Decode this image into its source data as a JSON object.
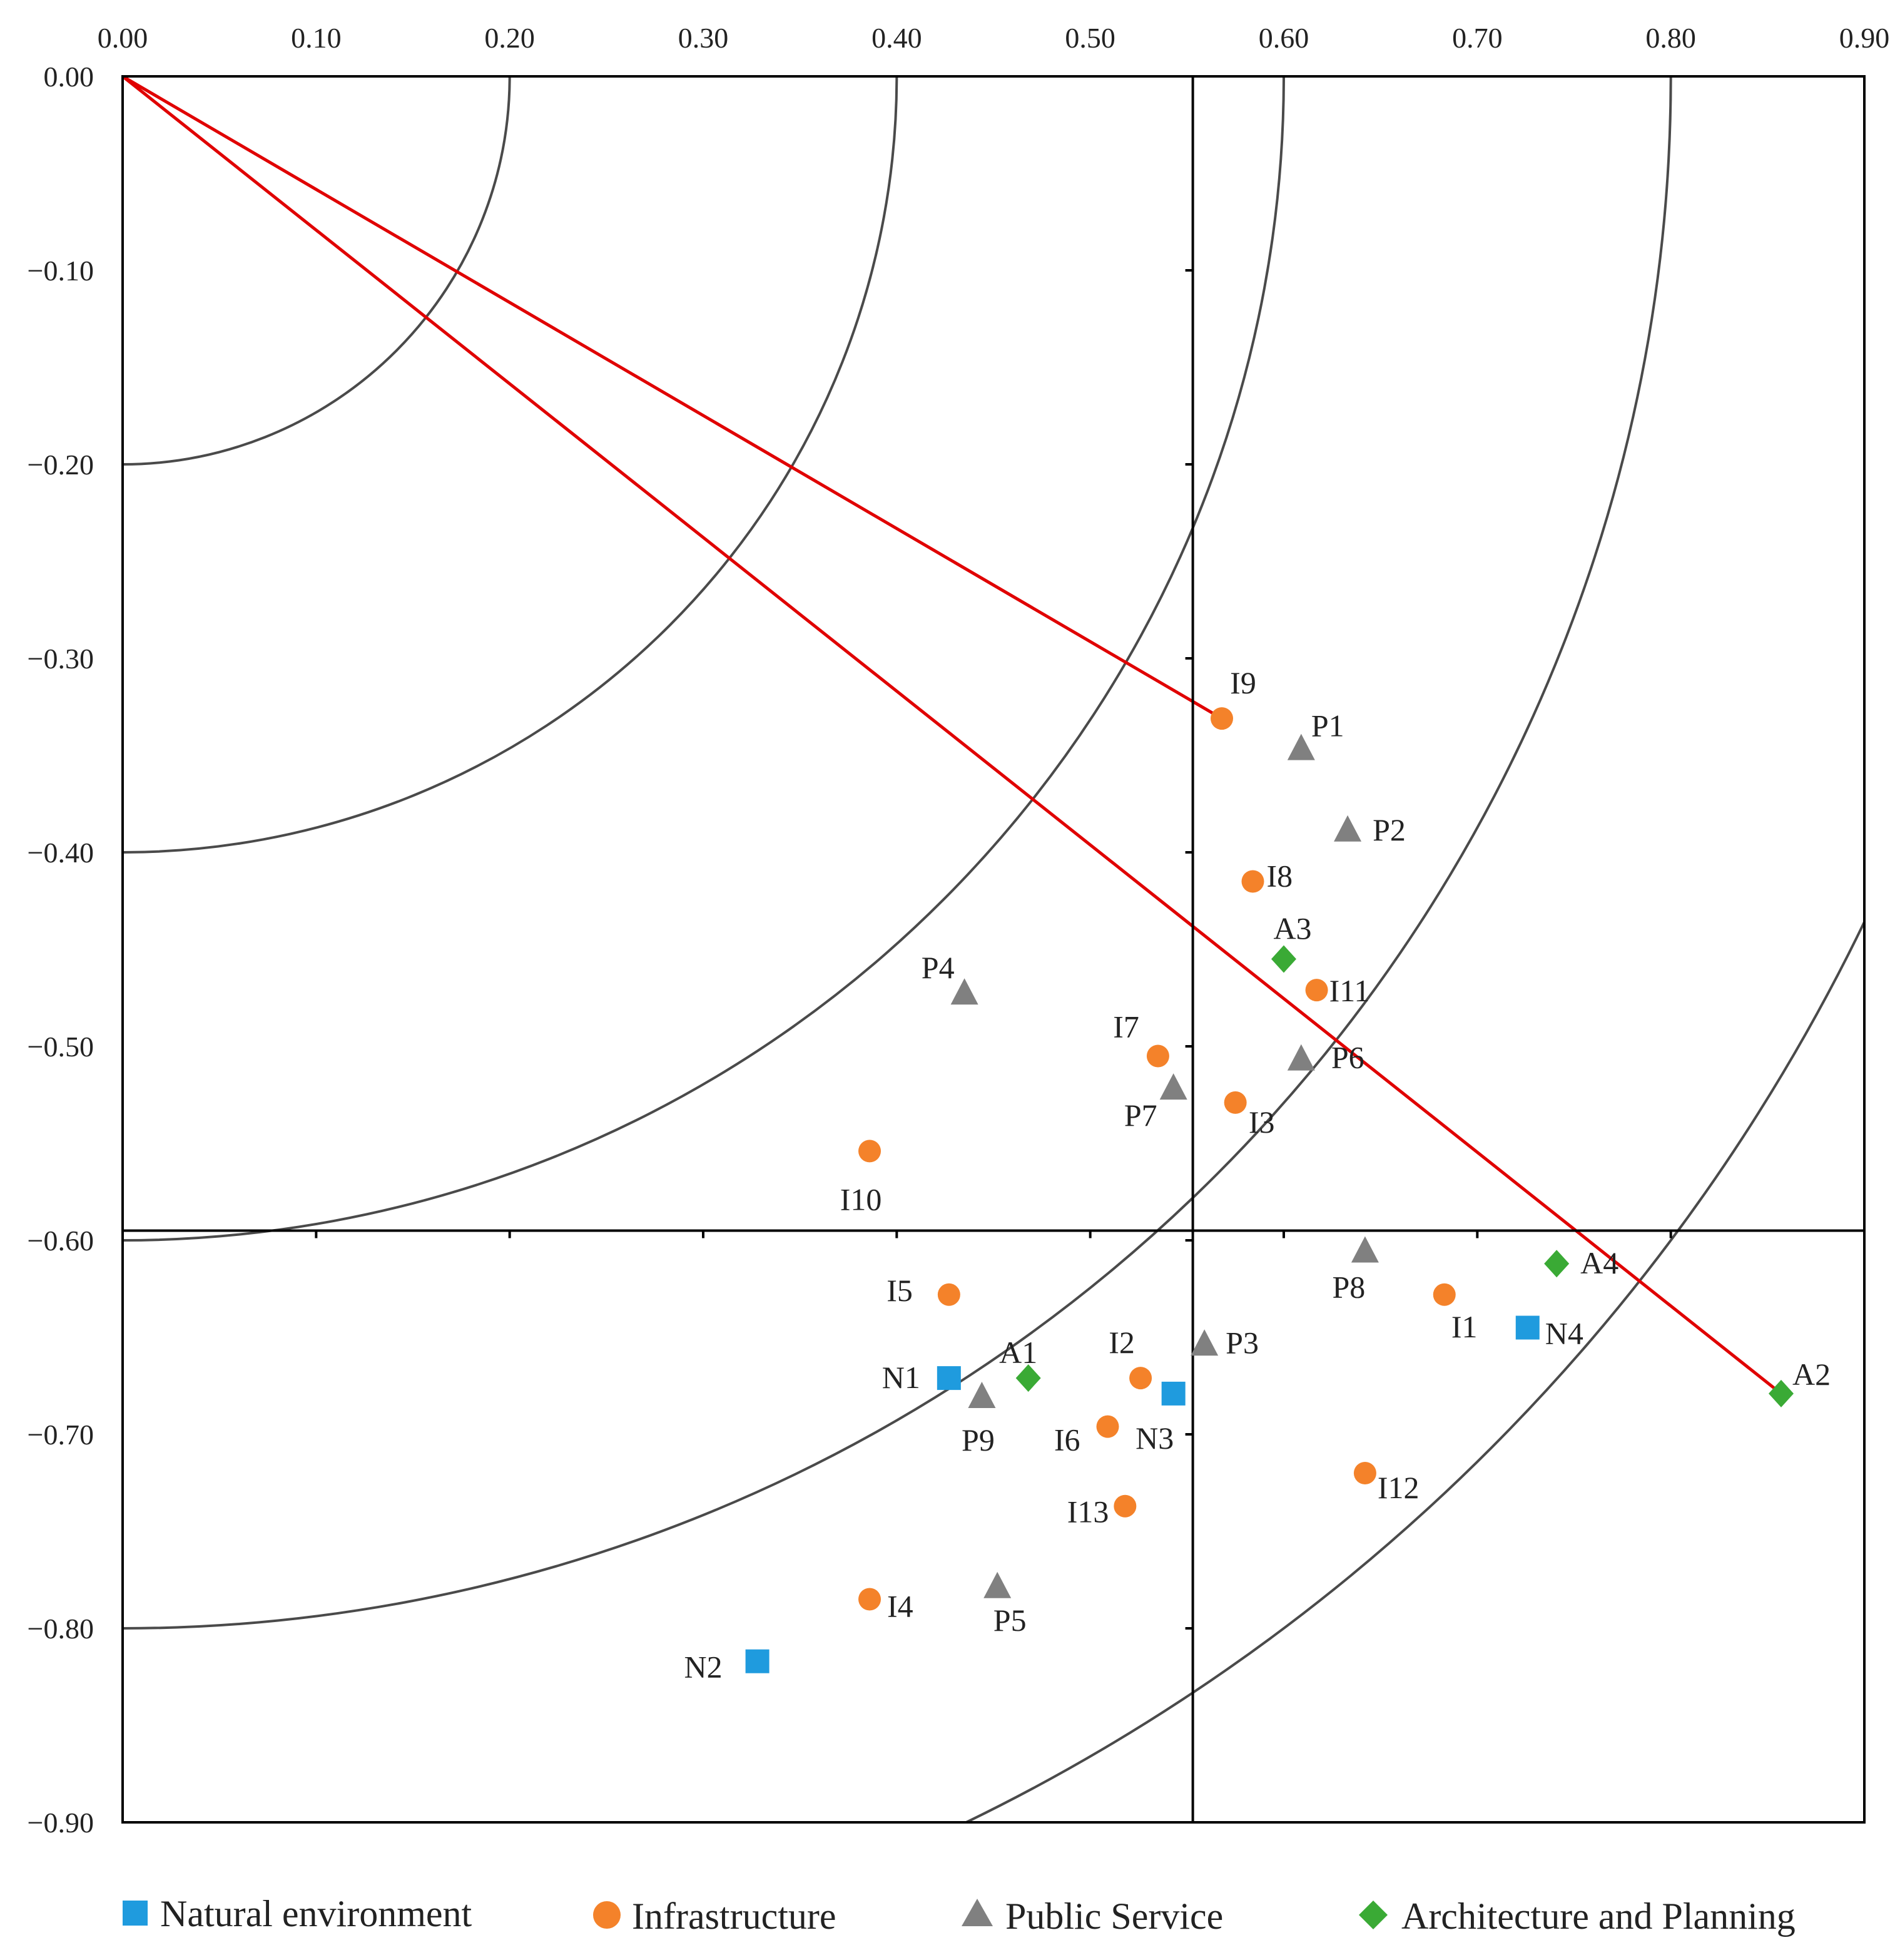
{
  "chart_data": {
    "type": "scatter",
    "title": "",
    "xlabel": "",
    "ylabel": "",
    "xlim": [
      0,
      0.9
    ],
    "ylim": [
      -0.9,
      0
    ],
    "x_ticks": [
      0,
      0.1,
      0.2,
      0.3,
      0.4,
      0.5,
      0.6,
      0.7,
      0.8,
      0.9
    ],
    "y_ticks": [
      0,
      -0.1,
      -0.2,
      -0.3,
      -0.4,
      -0.5,
      -0.6,
      -0.7,
      -0.8,
      -0.9
    ],
    "x_tick_labels": [
      "0.00",
      "0.10",
      "0.20",
      "0.30",
      "0.40",
      "0.50",
      "0.60",
      "0.70",
      "0.80",
      "0.90"
    ],
    "y_tick_labels": [
      "0.00",
      "−0.10",
      "−0.20",
      "−0.30",
      "−0.40",
      "−0.50",
      "−0.60",
      "−0.70",
      "−0.80",
      "−0.90"
    ],
    "quadrant_lines": {
      "x": 0.553,
      "y": -0.595
    },
    "arcs": [
      {
        "radius": 0.2,
        "center": [
          0,
          0
        ]
      },
      {
        "radius": 0.4,
        "center": [
          0,
          0
        ]
      },
      {
        "radius": 0.6,
        "center": [
          0,
          0
        ]
      },
      {
        "radius": 0.8,
        "center": [
          0,
          0
        ]
      },
      {
        "radius": 1.0,
        "center": [
          0,
          0
        ]
      }
    ],
    "reference_lines": [
      {
        "from": [
          0,
          0
        ],
        "to": [
          0.568,
          -0.331
        ],
        "color": "#e00000"
      },
      {
        "from": [
          0,
          0
        ],
        "to": [
          0.857,
          -0.679
        ],
        "color": "#e00000"
      }
    ],
    "series": [
      {
        "name": "Natural environment",
        "marker": "square",
        "color": "#1f9bde",
        "points": [
          {
            "label": "N1",
            "x": 0.427,
            "y": -0.671
          },
          {
            "label": "N2",
            "x": 0.328,
            "y": -0.817
          },
          {
            "label": "N3",
            "x": 0.543,
            "y": -0.679
          },
          {
            "label": "N4",
            "x": 0.726,
            "y": -0.645
          }
        ]
      },
      {
        "name": "Infrastructure",
        "marker": "circle",
        "color": "#f4822a",
        "points": [
          {
            "label": "I1",
            "x": 0.683,
            "y": -0.628
          },
          {
            "label": "I2",
            "x": 0.526,
            "y": -0.671
          },
          {
            "label": "I3",
            "x": 0.575,
            "y": -0.529
          },
          {
            "label": "I4",
            "x": 0.386,
            "y": -0.785
          },
          {
            "label": "I5",
            "x": 0.427,
            "y": -0.628
          },
          {
            "label": "I6",
            "x": 0.509,
            "y": -0.696
          },
          {
            "label": "I7",
            "x": 0.535,
            "y": -0.505
          },
          {
            "label": "I8",
            "x": 0.584,
            "y": -0.415
          },
          {
            "label": "I9",
            "x": 0.568,
            "y": -0.331
          },
          {
            "label": "I10",
            "x": 0.386,
            "y": -0.554
          },
          {
            "label": "I11",
            "x": 0.617,
            "y": -0.471
          },
          {
            "label": "I12",
            "x": 0.642,
            "y": -0.72
          },
          {
            "label": "I13",
            "x": 0.518,
            "y": -0.737
          }
        ]
      },
      {
        "name": "Public Service",
        "marker": "triangle",
        "color": "#808080",
        "points": [
          {
            "label": "P1",
            "x": 0.609,
            "y": -0.346
          },
          {
            "label": "P2",
            "x": 0.633,
            "y": -0.388
          },
          {
            "label": "P3",
            "x": 0.559,
            "y": -0.653
          },
          {
            "label": "P4",
            "x": 0.435,
            "y": -0.472
          },
          {
            "label": "P5",
            "x": 0.452,
            "y": -0.778
          },
          {
            "label": "P6",
            "x": 0.609,
            "y": -0.506
          },
          {
            "label": "P7",
            "x": 0.543,
            "y": -0.521
          },
          {
            "label": "P8",
            "x": 0.642,
            "y": -0.605
          },
          {
            "label": "P9",
            "x": 0.444,
            "y": -0.68
          }
        ]
      },
      {
        "name": "Architecture and Planning",
        "marker": "diamond",
        "color": "#3aaa35",
        "points": [
          {
            "label": "A1",
            "x": 0.468,
            "y": -0.671
          },
          {
            "label": "A2",
            "x": 0.857,
            "y": -0.679
          },
          {
            "label": "A3",
            "x": 0.6,
            "y": -0.455
          },
          {
            "label": "A4",
            "x": 0.741,
            "y": -0.612
          }
        ]
      }
    ],
    "legend": {
      "position": "bottom",
      "entries": [
        "Natural environment",
        "Infrastructure",
        "Public Service",
        "Architecture and Planning"
      ]
    }
  }
}
